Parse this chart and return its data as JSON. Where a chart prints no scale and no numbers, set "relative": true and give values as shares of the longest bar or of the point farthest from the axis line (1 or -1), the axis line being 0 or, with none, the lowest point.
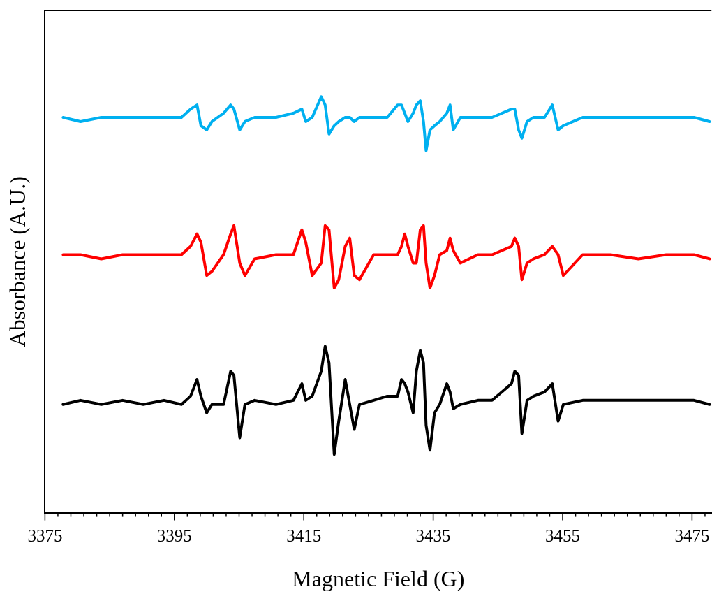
{
  "chart_data": {
    "type": "line",
    "relative": true,
    "xlabel": "Magnetic Field (G)",
    "ylabel": "Absorbance (A.U.)",
    "legend": false,
    "grid": false,
    "marker": "none",
    "line_style": "solid",
    "xlim": [
      3375,
      3478
    ],
    "xticks": [
      3375,
      {
        "value": 3377,
        "label": null
      },
      {
        "value": 3379,
        "label": null
      },
      {
        "value": 3381,
        "label": null
      },
      {
        "value": 3383,
        "label": null
      },
      {
        "value": 3385,
        "label": null
      },
      {
        "value": 3387,
        "label": null
      },
      {
        "value": 3389,
        "label": null
      },
      {
        "value": 3391,
        "label": null
      },
      {
        "value": 3393,
        "label": null
      },
      3395,
      {
        "value": 3397,
        "label": null
      },
      {
        "value": 3399,
        "label": null
      },
      {
        "value": 3401,
        "label": null
      },
      {
        "value": 3403,
        "label": null
      },
      {
        "value": 3405,
        "label": null
      },
      {
        "value": 3407,
        "label": null
      },
      {
        "value": 3409,
        "label": null
      },
      {
        "value": 3411,
        "label": null
      },
      {
        "value": 3413,
        "label": null
      },
      3415,
      {
        "value": 3417,
        "label": null
      },
      {
        "value": 3419,
        "label": null
      },
      {
        "value": 3421,
        "label": null
      },
      {
        "value": 3423,
        "label": null
      },
      {
        "value": 3425,
        "label": null
      },
      {
        "value": 3427,
        "label": null
      },
      {
        "value": 3429,
        "label": null
      },
      {
        "value": 3431,
        "label": null
      },
      {
        "value": 3433,
        "label": null
      },
      3435,
      {
        "value": 3437,
        "label": null
      },
      {
        "value": 3439,
        "label": null
      },
      {
        "value": 3441,
        "label": null
      },
      {
        "value": 3443,
        "label": null
      },
      {
        "value": 3445,
        "label": null
      },
      {
        "value": 3447,
        "label": null
      },
      {
        "value": 3449,
        "label": null
      },
      {
        "value": 3451,
        "label": null
      },
      {
        "value": 3453,
        "label": null
      },
      3455,
      {
        "value": 3457,
        "label": null
      },
      {
        "value": 3459,
        "label": null
      },
      {
        "value": 3461,
        "label": null
      },
      {
        "value": 3463,
        "label": null
      },
      {
        "value": 3465,
        "label": null
      },
      {
        "value": 3467,
        "label": null
      },
      {
        "value": 3469,
        "label": null
      },
      {
        "value": 3471,
        "label": null
      },
      {
        "value": 3473,
        "label": null
      },
      3475,
      {
        "value": 3477,
        "label": null
      }
    ],
    "x": [
      3377.8,
      3380.5,
      3383.7,
      3387.0,
      3390.2,
      3393.4,
      3396.1,
      3397.5,
      3398.5,
      3399.1,
      3400.0,
      3400.8,
      3402.6,
      3403.7,
      3404.2,
      3405.1,
      3405.9,
      3407.4,
      3410.7,
      3413.4,
      3414.7,
      3415.3,
      3416.3,
      3417.7,
      3418.3,
      3418.9,
      3419.7,
      3420.4,
      3421.4,
      3422.1,
      3422.8,
      3423.6,
      3425.8,
      3427.9,
      3429.5,
      3430.1,
      3430.6,
      3431.1,
      3431.9,
      3432.4,
      3433.0,
      3433.5,
      3433.9,
      3434.5,
      3435.2,
      3436.0,
      3437.1,
      3437.6,
      3438.1,
      3439.2,
      3441.9,
      3444.1,
      3447.1,
      3447.6,
      3448.2,
      3448.7,
      3449.5,
      3450.5,
      3452.2,
      3453.4,
      3454.3,
      3455.1,
      3458.1,
      3462.4,
      3466.7,
      3471.0,
      3475.3,
      3477.7
    ],
    "series": [
      {
        "color": "#00b0f0",
        "values": [
          0.95,
          0.94,
          0.95,
          0.95,
          0.95,
          0.95,
          0.95,
          0.97,
          0.98,
          0.93,
          0.92,
          0.94,
          0.96,
          0.98,
          0.97,
          0.92,
          0.94,
          0.95,
          0.95,
          0.96,
          0.97,
          0.94,
          0.95,
          1.0,
          0.98,
          0.91,
          0.93,
          0.94,
          0.95,
          0.95,
          0.94,
          0.95,
          0.95,
          0.95,
          0.98,
          0.98,
          0.96,
          0.94,
          0.96,
          0.98,
          0.99,
          0.94,
          0.87,
          0.92,
          0.93,
          0.94,
          0.96,
          0.98,
          0.92,
          0.95,
          0.95,
          0.95,
          0.97,
          0.97,
          0.92,
          0.9,
          0.94,
          0.95,
          0.95,
          0.98,
          0.92,
          0.93,
          0.95,
          0.95,
          0.95,
          0.95,
          0.95,
          0.94
        ]
      },
      {
        "color": "#ff0000",
        "values": [
          0.62,
          0.62,
          0.61,
          0.62,
          0.62,
          0.62,
          0.62,
          0.64,
          0.67,
          0.65,
          0.57,
          0.58,
          0.62,
          0.67,
          0.69,
          0.6,
          0.57,
          0.61,
          0.62,
          0.62,
          0.68,
          0.65,
          0.57,
          0.6,
          0.69,
          0.68,
          0.54,
          0.56,
          0.64,
          0.66,
          0.57,
          0.56,
          0.62,
          0.62,
          0.62,
          0.64,
          0.67,
          0.64,
          0.6,
          0.6,
          0.68,
          0.69,
          0.6,
          0.54,
          0.57,
          0.62,
          0.63,
          0.66,
          0.63,
          0.6,
          0.62,
          0.62,
          0.64,
          0.66,
          0.64,
          0.56,
          0.6,
          0.61,
          0.62,
          0.64,
          0.62,
          0.57,
          0.62,
          0.62,
          0.61,
          0.62,
          0.62,
          0.61
        ]
      },
      {
        "color": "#000000",
        "values": [
          0.26,
          0.27,
          0.26,
          0.27,
          0.26,
          0.27,
          0.26,
          0.28,
          0.32,
          0.28,
          0.24,
          0.26,
          0.26,
          0.34,
          0.33,
          0.18,
          0.26,
          0.27,
          0.26,
          0.27,
          0.31,
          0.27,
          0.28,
          0.34,
          0.4,
          0.36,
          0.14,
          0.22,
          0.32,
          0.26,
          0.2,
          0.26,
          0.27,
          0.28,
          0.28,
          0.32,
          0.31,
          0.29,
          0.24,
          0.34,
          0.39,
          0.36,
          0.21,
          0.15,
          0.24,
          0.26,
          0.31,
          0.29,
          0.25,
          0.26,
          0.27,
          0.27,
          0.31,
          0.34,
          0.33,
          0.19,
          0.27,
          0.28,
          0.29,
          0.31,
          0.22,
          0.26,
          0.27,
          0.27,
          0.27,
          0.27,
          0.27,
          0.26
        ]
      }
    ]
  }
}
